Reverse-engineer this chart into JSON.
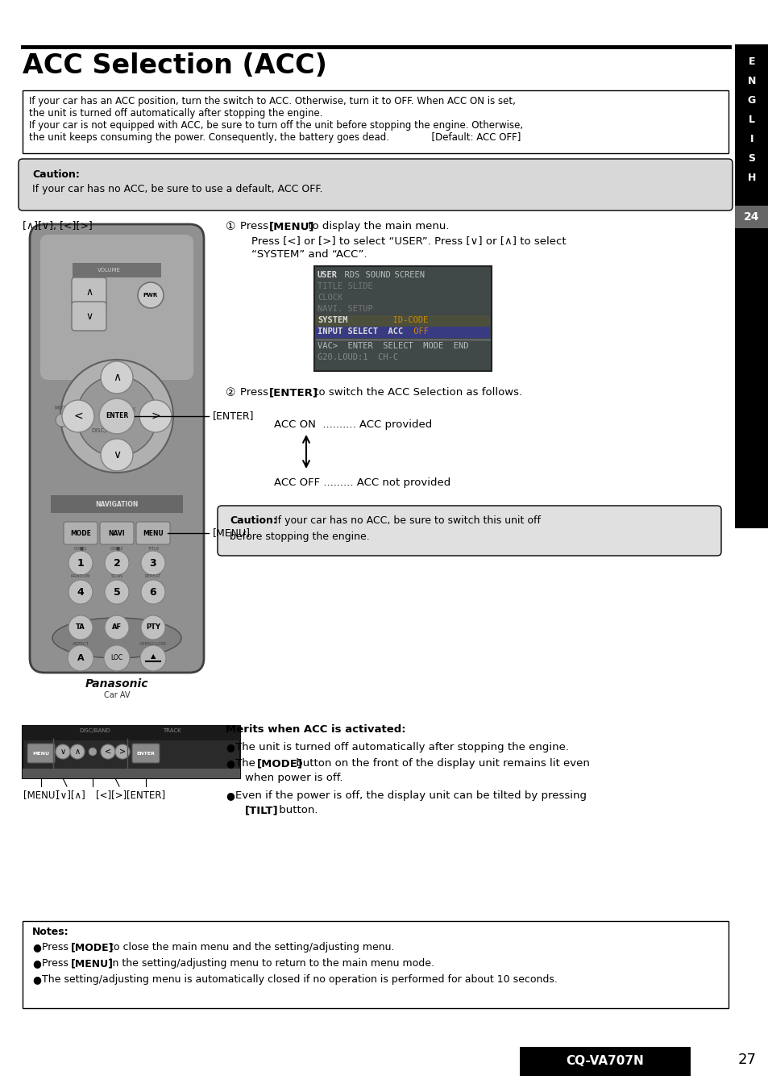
{
  "title": "ACC Selection (ACC)",
  "page_number": "27",
  "model": "CQ-VA707N",
  "sidebar_letters": [
    "E",
    "N",
    "G",
    "L",
    "I",
    "S",
    "H"
  ],
  "sidebar_highlight": "24",
  "top_box_line1": "If your car has an ACC position, turn the switch to ACC. Otherwise, turn it to OFF. When ACC ON is set,",
  "top_box_line2": "the unit is turned off automatically after stopping the engine.",
  "top_box_line3": "If your car is not equipped with ACC, be sure to turn off the unit before stopping the engine. Otherwise,",
  "top_box_line4": "the unit keeps consuming the power. Consequently, the battery goes dead.              [Default: ACC OFF]",
  "caution_box_title": "Caution:",
  "caution_box_text": "If your car has no ACC, be sure to use a default, ACC OFF.",
  "step1_text_line1_pre": "Press ",
  "step1_text_line1_bold": "[MENU]",
  "step1_text_line1_post": " to display the main menu.",
  "step1_text_line2": "Press [<] or [>] to select “USER”. Press [∨] or [∧] to select",
  "step1_text_line3": "“SYSTEM” and “ACC”.",
  "step2_pre": "Press ",
  "step2_bold": "[ENTER]",
  "step2_post": " to switch the ACC Selection as follows.",
  "acc_on_text": "ACC ON  .......... ACC provided",
  "acc_off_text": "ACC OFF ......... ACC not provided",
  "caution2_bold": "Caution:",
  "caution2_rest": " If your car has no ACC, be sure to switch this unit off",
  "caution2_line2": "before stopping the engine.",
  "merits_title": "Merits when ACC is activated:",
  "merit1": "The unit is turned off automatically after stopping the engine.",
  "merit2_pre": "The ",
  "merit2_bold": "[MODE]",
  "merit2_post": " button on the front of the display unit remains lit even",
  "merit2_cont": "when power is off.",
  "merit3_pre": "Even if the power is off, the display unit can be tilted by pressing",
  "merit3_bold": "[TILT]",
  "merit3_post": " button.",
  "notes_title": "Notes:",
  "note1_pre": "Press ",
  "note1_bold": "[MODE]",
  "note1_post": " to close the main menu and the setting/adjusting menu.",
  "note2_pre": "Press ",
  "note2_bold": "[MENU]",
  "note2_post": " in the setting/adjusting menu to return to the main menu mode.",
  "note3": "The setting/adjusting menu is automatically closed if no operation is performed for about 10 seconds.",
  "bg_color": "#ffffff",
  "sidebar_bg": "#000000",
  "box_border_color": "#000000",
  "caution_box_bg": "#d8d8d8",
  "remote_body_color": "#888888",
  "remote_dark_color": "#555555",
  "remote_light_color": "#bbbbbb",
  "screen_bg": "#404848"
}
